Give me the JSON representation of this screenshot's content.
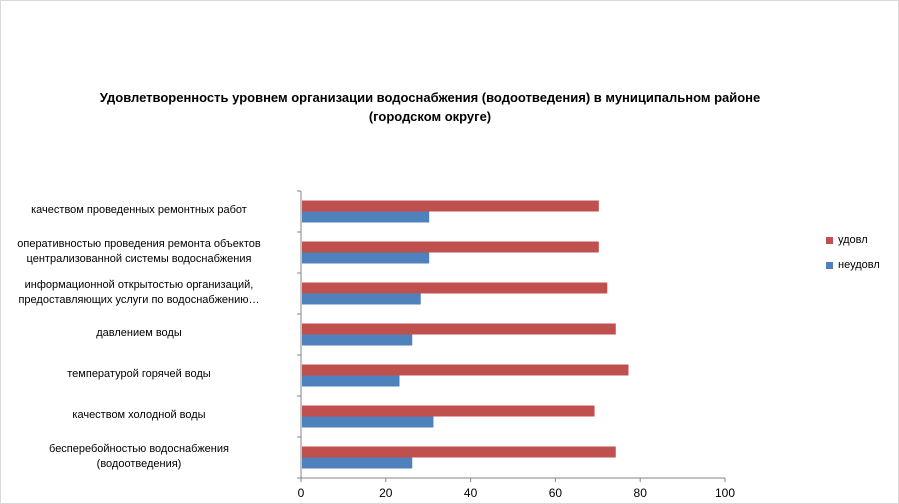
{
  "chart_data": {
    "type": "bar",
    "orientation": "horizontal",
    "title": "Удовлетворенность уровнем организации водоснабжения (водоотведения) в муниципальном районе (городском округе)",
    "title_lines": [
      "Удовлетворенность уровнем организации водоснабжения (водоотведения) в муниципальном районе",
      "(городском округе)"
    ],
    "categories": [
      [
        "качеством  проведенных  ремонтных работ"
      ],
      [
        "оперативностью  проведения  ремонта объектов",
        "централизованной системы водоснабжения"
      ],
      [
        "информационной открытостью организаций,",
        "предоставляющих услуги по водоснабжению…"
      ],
      [
        "давлением  воды"
      ],
      [
        "температурой горячей воды"
      ],
      [
        "качеством  холодной воды"
      ],
      [
        "бесперебойностью  водоснабжения",
        "(водоотведения)"
      ]
    ],
    "series": [
      {
        "name": "удовл",
        "color": "#c0504d",
        "values": [
          70,
          70,
          72,
          74,
          77,
          69,
          74
        ]
      },
      {
        "name": "неудовл",
        "color": "#4f81bd",
        "values": [
          30,
          30,
          28,
          26,
          23,
          31,
          26
        ]
      }
    ],
    "xlim": [
      0,
      100
    ],
    "xticks": [
      0,
      20,
      40,
      60,
      80,
      100
    ],
    "xlabel": "",
    "ylabel": "",
    "grid": false,
    "legend": "right"
  }
}
